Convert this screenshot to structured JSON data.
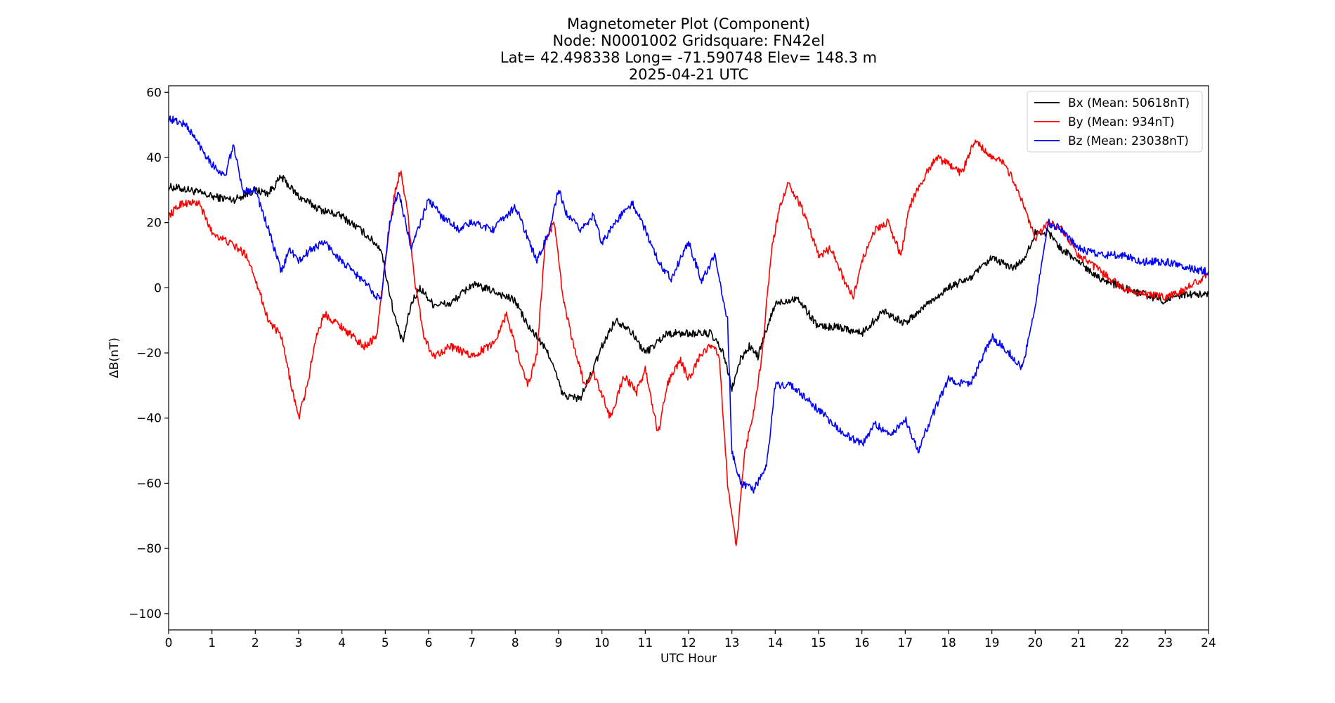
{
  "chart_data": {
    "type": "line",
    "title_lines": [
      "Magnetometer Plot (Component)",
      "Node:  N0001002     Gridsquare:  FN42el",
      "Lat= 42.498338    Long= -71.590748    Elev= 148.3 m",
      "2025-04-21  UTC"
    ],
    "xlabel": "UTC Hour",
    "ylabel": "ΔB(nT)",
    "xlim": [
      0,
      24
    ],
    "ylim": [
      -105,
      62
    ],
    "xticks": [
      0,
      1,
      2,
      3,
      4,
      5,
      6,
      7,
      8,
      9,
      10,
      11,
      12,
      13,
      14,
      15,
      16,
      17,
      18,
      19,
      20,
      21,
      22,
      23,
      24
    ],
    "yticks": [
      -100,
      -80,
      -60,
      -40,
      -20,
      0,
      20,
      40,
      60
    ],
    "grid": false,
    "legend_position": "top-right",
    "series": [
      {
        "name": "Bx (Mean: 50618nT)",
        "color": "#000000",
        "points": [
          [
            0,
            31
          ],
          [
            0.5,
            30
          ],
          [
            1,
            28
          ],
          [
            1.5,
            27
          ],
          [
            2,
            30
          ],
          [
            2.3,
            29
          ],
          [
            2.6,
            34
          ],
          [
            3,
            28
          ],
          [
            3.5,
            24
          ],
          [
            4,
            22
          ],
          [
            4.5,
            17
          ],
          [
            4.9,
            12
          ],
          [
            5,
            5
          ],
          [
            5.2,
            -8
          ],
          [
            5.4,
            -17
          ],
          [
            5.6,
            -5
          ],
          [
            5.8,
            0
          ],
          [
            6.1,
            -5
          ],
          [
            6.5,
            -5
          ],
          [
            7,
            1
          ],
          [
            7.5,
            -1
          ],
          [
            8,
            -4
          ],
          [
            8.3,
            -12
          ],
          [
            8.5,
            -15
          ],
          [
            8.8,
            -21
          ],
          [
            9.1,
            -33
          ],
          [
            9.5,
            -34
          ],
          [
            9.8,
            -25
          ],
          [
            10,
            -18
          ],
          [
            10.3,
            -10
          ],
          [
            10.6,
            -12
          ],
          [
            11,
            -20
          ],
          [
            11.5,
            -14
          ],
          [
            12,
            -14
          ],
          [
            12.5,
            -14
          ],
          [
            12.8,
            -20
          ],
          [
            13,
            -31
          ],
          [
            13.2,
            -22
          ],
          [
            13.4,
            -18
          ],
          [
            13.6,
            -21
          ],
          [
            14,
            -5
          ],
          [
            14.5,
            -3
          ],
          [
            15,
            -12
          ],
          [
            15.5,
            -12
          ],
          [
            16,
            -14
          ],
          [
            16.5,
            -7
          ],
          [
            17,
            -11
          ],
          [
            17.5,
            -5
          ],
          [
            18,
            0
          ],
          [
            18.5,
            3
          ],
          [
            19,
            9
          ],
          [
            19.5,
            6
          ],
          [
            19.8,
            10
          ],
          [
            20,
            17
          ],
          [
            20.3,
            17
          ],
          [
            20.6,
            12
          ],
          [
            21,
            8
          ],
          [
            21.5,
            3
          ],
          [
            22,
            0
          ],
          [
            22.5,
            -2
          ],
          [
            23,
            -4
          ],
          [
            23.5,
            -2
          ],
          [
            24,
            -2
          ]
        ]
      },
      {
        "name": "By (Mean: 934nT)",
        "color": "#ff0000",
        "points": [
          [
            0,
            22
          ],
          [
            0.3,
            26
          ],
          [
            0.7,
            26
          ],
          [
            1,
            17
          ],
          [
            1.5,
            13
          ],
          [
            1.8,
            10
          ],
          [
            2,
            3
          ],
          [
            2.3,
            -10
          ],
          [
            2.6,
            -15
          ],
          [
            2.8,
            -28
          ],
          [
            3,
            -40
          ],
          [
            3.2,
            -30
          ],
          [
            3.4,
            -15
          ],
          [
            3.6,
            -8
          ],
          [
            4,
            -12
          ],
          [
            4.5,
            -18
          ],
          [
            4.8,
            -15
          ],
          [
            5,
            8
          ],
          [
            5.2,
            28
          ],
          [
            5.35,
            36
          ],
          [
            5.5,
            25
          ],
          [
            5.7,
            0
          ],
          [
            5.9,
            -15
          ],
          [
            6.1,
            -21
          ],
          [
            6.5,
            -18
          ],
          [
            7,
            -21
          ],
          [
            7.5,
            -17
          ],
          [
            7.8,
            -8
          ],
          [
            8,
            -18
          ],
          [
            8.3,
            -30
          ],
          [
            8.5,
            -20
          ],
          [
            8.7,
            15
          ],
          [
            8.9,
            20
          ],
          [
            9.1,
            -3
          ],
          [
            9.3,
            -15
          ],
          [
            9.6,
            -30
          ],
          [
            9.8,
            -26
          ],
          [
            10,
            -33
          ],
          [
            10.2,
            -40
          ],
          [
            10.5,
            -27
          ],
          [
            10.8,
            -32
          ],
          [
            11,
            -25
          ],
          [
            11.3,
            -45
          ],
          [
            11.5,
            -30
          ],
          [
            11.8,
            -22
          ],
          [
            12,
            -28
          ],
          [
            12.3,
            -20
          ],
          [
            12.5,
            -18
          ],
          [
            12.7,
            -20
          ],
          [
            12.9,
            -60
          ],
          [
            13.1,
            -80
          ],
          [
            13.3,
            -50
          ],
          [
            13.5,
            -38
          ],
          [
            13.7,
            -20
          ],
          [
            13.9,
            10
          ],
          [
            14.1,
            25
          ],
          [
            14.3,
            32
          ],
          [
            14.6,
            25
          ],
          [
            15,
            10
          ],
          [
            15.3,
            12
          ],
          [
            15.6,
            2
          ],
          [
            15.8,
            -3
          ],
          [
            16,
            8
          ],
          [
            16.3,
            18
          ],
          [
            16.6,
            20
          ],
          [
            16.9,
            10
          ],
          [
            17.1,
            25
          ],
          [
            17.4,
            33
          ],
          [
            17.7,
            40
          ],
          [
            18,
            38
          ],
          [
            18.3,
            35
          ],
          [
            18.6,
            45
          ],
          [
            19,
            40
          ],
          [
            19.3,
            38
          ],
          [
            19.6,
            30
          ],
          [
            20,
            15
          ],
          [
            20.3,
            20
          ],
          [
            20.6,
            18
          ],
          [
            21,
            10
          ],
          [
            21.5,
            5
          ],
          [
            22,
            0
          ],
          [
            22.5,
            -2
          ],
          [
            23,
            -3
          ],
          [
            23.5,
            0
          ],
          [
            24,
            4
          ]
        ]
      },
      {
        "name": "Bz (Mean: 23038nT)",
        "color": "#0000ff",
        "points": [
          [
            0,
            52
          ],
          [
            0.4,
            50
          ],
          [
            0.7,
            44
          ],
          [
            1,
            38
          ],
          [
            1.3,
            34
          ],
          [
            1.5,
            44
          ],
          [
            1.7,
            30
          ],
          [
            2,
            30
          ],
          [
            2.3,
            18
          ],
          [
            2.6,
            5
          ],
          [
            2.8,
            12
          ],
          [
            3,
            8
          ],
          [
            3.3,
            12
          ],
          [
            3.6,
            14
          ],
          [
            4,
            8
          ],
          [
            4.5,
            2
          ],
          [
            4.9,
            -4
          ],
          [
            5.1,
            20
          ],
          [
            5.3,
            30
          ],
          [
            5.6,
            12
          ],
          [
            6,
            27
          ],
          [
            6.3,
            22
          ],
          [
            6.7,
            18
          ],
          [
            7,
            20
          ],
          [
            7.5,
            18
          ],
          [
            8,
            25
          ],
          [
            8.3,
            15
          ],
          [
            8.5,
            8
          ],
          [
            8.8,
            18
          ],
          [
            9,
            30
          ],
          [
            9.2,
            22
          ],
          [
            9.5,
            18
          ],
          [
            9.8,
            22
          ],
          [
            10,
            14
          ],
          [
            10.3,
            20
          ],
          [
            10.7,
            26
          ],
          [
            11,
            18
          ],
          [
            11.3,
            8
          ],
          [
            11.6,
            3
          ],
          [
            12,
            14
          ],
          [
            12.3,
            2
          ],
          [
            12.6,
            10
          ],
          [
            12.9,
            -10
          ],
          [
            13,
            -50
          ],
          [
            13.2,
            -60
          ],
          [
            13.5,
            -62
          ],
          [
            13.8,
            -55
          ],
          [
            14,
            -30
          ],
          [
            14.4,
            -30
          ],
          [
            14.8,
            -35
          ],
          [
            15.2,
            -40
          ],
          [
            15.6,
            -45
          ],
          [
            16,
            -48
          ],
          [
            16.3,
            -42
          ],
          [
            16.7,
            -45
          ],
          [
            17,
            -40
          ],
          [
            17.3,
            -50
          ],
          [
            17.6,
            -40
          ],
          [
            18,
            -28
          ],
          [
            18.5,
            -30
          ],
          [
            19,
            -15
          ],
          [
            19.4,
            -20
          ],
          [
            19.7,
            -25
          ],
          [
            20,
            -5
          ],
          [
            20.3,
            20
          ],
          [
            20.6,
            18
          ],
          [
            21,
            12
          ],
          [
            21.5,
            10
          ],
          [
            22,
            10
          ],
          [
            22.5,
            8
          ],
          [
            23,
            8
          ],
          [
            23.5,
            6
          ],
          [
            24,
            5
          ]
        ]
      }
    ]
  }
}
